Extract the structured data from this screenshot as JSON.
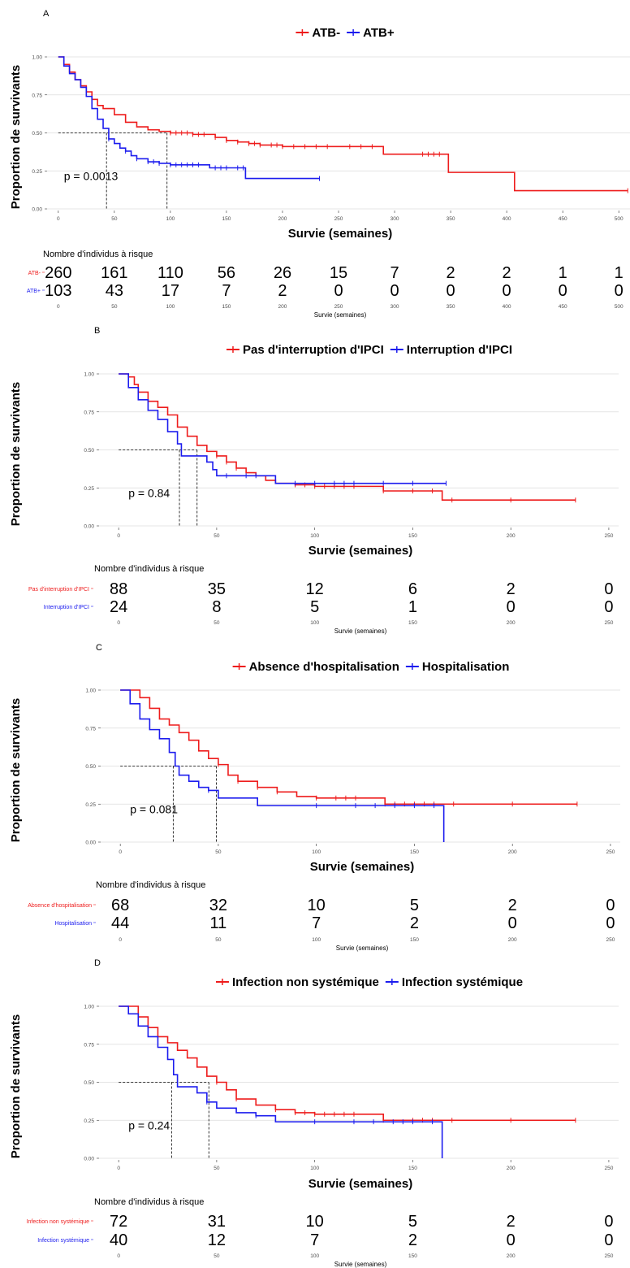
{
  "colors": {
    "red": "#ee1c1c",
    "blue": "#1c1cee",
    "grid": "#dcdcdc",
    "axis_text": "#4d4d4d"
  },
  "chart_data": [
    {
      "type": "line",
      "panel": "A",
      "xlabel": "Survie (semaines)",
      "ylabel": "Proportion de survivants",
      "xlim": [
        -10,
        510
      ],
      "ylim": [
        0,
        1
      ],
      "x_ticks": [
        0,
        50,
        100,
        150,
        200,
        250,
        300,
        350,
        400,
        450,
        500
      ],
      "y_ticks": [
        "0.00",
        "0.25",
        "0.50",
        "0.75",
        "1.00"
      ],
      "legend": [
        "ATB-",
        "ATB+"
      ],
      "legend_position": "top",
      "pvalue": "p = 0.0013",
      "medians": [
        43,
        97
      ],
      "series": [
        {
          "name": "ATB-",
          "color": "red",
          "points": [
            [
              0,
              1
            ],
            [
              5,
              0.95
            ],
            [
              10,
              0.9
            ],
            [
              15,
              0.85
            ],
            [
              20,
              0.81
            ],
            [
              25,
              0.77
            ],
            [
              30,
              0.72
            ],
            [
              35,
              0.68
            ],
            [
              40,
              0.66
            ],
            [
              50,
              0.62
            ],
            [
              60,
              0.57
            ],
            [
              70,
              0.54
            ],
            [
              80,
              0.52
            ],
            [
              90,
              0.51
            ],
            [
              100,
              0.5
            ],
            [
              120,
              0.49
            ],
            [
              140,
              0.47
            ],
            [
              150,
              0.45
            ],
            [
              160,
              0.44
            ],
            [
              170,
              0.43
            ],
            [
              180,
              0.42
            ],
            [
              200,
              0.41
            ],
            [
              290,
              0.41
            ],
            [
              290,
              0.36
            ],
            [
              348,
              0.36
            ],
            [
              348,
              0.24
            ],
            [
              407,
              0.24
            ],
            [
              407,
              0.12
            ],
            [
              508,
              0.12
            ]
          ],
          "censor": [
            100,
            105,
            110,
            115,
            120,
            125,
            130,
            140,
            150,
            160,
            170,
            175,
            180,
            190,
            195,
            200,
            210,
            220,
            230,
            240,
            260,
            270,
            280,
            325,
            330,
            335,
            340,
            508
          ]
        },
        {
          "name": "ATB+",
          "color": "blue",
          "points": [
            [
              0,
              1
            ],
            [
              5,
              0.94
            ],
            [
              10,
              0.89
            ],
            [
              15,
              0.85
            ],
            [
              20,
              0.8
            ],
            [
              25,
              0.74
            ],
            [
              30,
              0.66
            ],
            [
              35,
              0.59
            ],
            [
              40,
              0.53
            ],
            [
              45,
              0.46
            ],
            [
              50,
              0.43
            ],
            [
              55,
              0.4
            ],
            [
              60,
              0.38
            ],
            [
              65,
              0.35
            ],
            [
              70,
              0.33
            ],
            [
              80,
              0.31
            ],
            [
              90,
              0.3
            ],
            [
              100,
              0.29
            ],
            [
              135,
              0.29
            ],
            [
              135,
              0.27
            ],
            [
              167,
              0.27
            ],
            [
              167,
              0.2
            ],
            [
              233,
              0.2
            ]
          ],
          "censor": [
            45,
            60,
            70,
            80,
            85,
            90,
            100,
            105,
            110,
            115,
            120,
            125,
            140,
            145,
            150,
            160,
            165,
            233
          ]
        }
      ],
      "risk_table": {
        "title": "Nombre d'individus à risque",
        "xlabel": "Survie (semaines)",
        "rows": [
          {
            "label": "ATB-",
            "color": "red",
            "values": [
              "260",
              "161",
              "110",
              "56",
              "26",
              "15",
              "7",
              "2",
              "2",
              "1",
              "1"
            ]
          },
          {
            "label": "ATB+",
            "color": "blue",
            "values": [
              "103",
              "43",
              "17",
              "7",
              "2",
              "0",
              "0",
              "0",
              "0",
              "0",
              "0"
            ]
          }
        ]
      }
    },
    {
      "type": "line",
      "panel": "B",
      "xlabel": "Survie (semaines)",
      "ylabel": "Proportion de survivants",
      "xlim": [
        -10,
        255
      ],
      "ylim": [
        0,
        1
      ],
      "x_ticks": [
        0,
        50,
        100,
        150,
        200,
        250
      ],
      "y_ticks": [
        "0.00",
        "0.25",
        "0.50",
        "0.75",
        "1.00"
      ],
      "legend": [
        "Pas d'interruption d'IPCI",
        "Interruption d'IPCI"
      ],
      "legend_position": "top",
      "pvalue": "p = 0.84",
      "medians": [
        31,
        40
      ],
      "series": [
        {
          "name": "Pas d'interruption d'IPCI",
          "color": "red",
          "points": [
            [
              0,
              1
            ],
            [
              5,
              0.98
            ],
            [
              8,
              0.93
            ],
            [
              10,
              0.88
            ],
            [
              15,
              0.82
            ],
            [
              20,
              0.78
            ],
            [
              25,
              0.73
            ],
            [
              30,
              0.65
            ],
            [
              35,
              0.59
            ],
            [
              40,
              0.53
            ],
            [
              45,
              0.49
            ],
            [
              50,
              0.46
            ],
            [
              55,
              0.42
            ],
            [
              60,
              0.38
            ],
            [
              65,
              0.35
            ],
            [
              70,
              0.33
            ],
            [
              75,
              0.3
            ],
            [
              80,
              0.28
            ],
            [
              90,
              0.27
            ],
            [
              100,
              0.26
            ],
            [
              135,
              0.26
            ],
            [
              135,
              0.23
            ],
            [
              165,
              0.23
            ],
            [
              165,
              0.17
            ],
            [
              233,
              0.17
            ]
          ],
          "censor": [
            50,
            55,
            60,
            90,
            95,
            100,
            105,
            110,
            115,
            120,
            135,
            150,
            160,
            170,
            200,
            233
          ]
        },
        {
          "name": "Interruption d'IPCI",
          "color": "blue",
          "points": [
            [
              0,
              1
            ],
            [
              5,
              0.91
            ],
            [
              10,
              0.83
            ],
            [
              15,
              0.76
            ],
            [
              20,
              0.7
            ],
            [
              25,
              0.62
            ],
            [
              30,
              0.54
            ],
            [
              32,
              0.46
            ],
            [
              40,
              0.46
            ],
            [
              45,
              0.42
            ],
            [
              48,
              0.37
            ],
            [
              50,
              0.33
            ],
            [
              80,
              0.33
            ],
            [
              80,
              0.28
            ],
            [
              167,
              0.28
            ]
          ],
          "censor": [
            55,
            65,
            70,
            90,
            100,
            110,
            115,
            120,
            135,
            150,
            167
          ]
        }
      ],
      "risk_table": {
        "title": "Nombre d'individus à risque",
        "xlabel": "Survie (semaines)",
        "rows": [
          {
            "label": "Pas d'interruption d'IPCI",
            "color": "red",
            "values": [
              "88",
              "35",
              "12",
              "6",
              "2",
              "0"
            ]
          },
          {
            "label": "Interruption d'IPCI",
            "color": "blue",
            "values": [
              "24",
              "8",
              "5",
              "1",
              "0",
              "0"
            ]
          }
        ]
      }
    },
    {
      "type": "line",
      "panel": "C",
      "xlabel": "Survie (semaines)",
      "ylabel": "Proportion de survivants",
      "xlim": [
        -10,
        255
      ],
      "ylim": [
        0,
        1
      ],
      "x_ticks": [
        0,
        50,
        100,
        150,
        200,
        250
      ],
      "y_ticks": [
        "0.00",
        "0.25",
        "0.50",
        "0.75",
        "1.00"
      ],
      "legend": [
        "Absence d'hospitalisation",
        "Hospitalisation"
      ],
      "legend_position": "top",
      "pvalue": "p = 0.081",
      "medians": [
        27,
        49
      ],
      "series": [
        {
          "name": "Absence d'hospitalisation",
          "color": "red",
          "points": [
            [
              0,
              1
            ],
            [
              7,
              1
            ],
            [
              10,
              0.95
            ],
            [
              15,
              0.88
            ],
            [
              20,
              0.81
            ],
            [
              25,
              0.77
            ],
            [
              30,
              0.72
            ],
            [
              35,
              0.67
            ],
            [
              40,
              0.6
            ],
            [
              45,
              0.55
            ],
            [
              50,
              0.51
            ],
            [
              55,
              0.44
            ],
            [
              60,
              0.4
            ],
            [
              70,
              0.36
            ],
            [
              80,
              0.33
            ],
            [
              90,
              0.3
            ],
            [
              100,
              0.29
            ],
            [
              135,
              0.29
            ],
            [
              135,
              0.25
            ],
            [
              233,
              0.25
            ]
          ],
          "censor": [
            50,
            60,
            70,
            80,
            100,
            110,
            115,
            120,
            135,
            140,
            145,
            150,
            155,
            160,
            170,
            200,
            233
          ]
        },
        {
          "name": "Hospitalisation",
          "color": "blue",
          "points": [
            [
              0,
              1
            ],
            [
              5,
              0.91
            ],
            [
              10,
              0.81
            ],
            [
              15,
              0.74
            ],
            [
              20,
              0.68
            ],
            [
              25,
              0.59
            ],
            [
              28,
              0.5
            ],
            [
              30,
              0.44
            ],
            [
              35,
              0.4
            ],
            [
              40,
              0.36
            ],
            [
              45,
              0.34
            ],
            [
              50,
              0.29
            ],
            [
              70,
              0.29
            ],
            [
              70,
              0.24
            ],
            [
              165,
              0.24
            ],
            [
              165,
              0
            ]
          ],
          "censor": [
            45,
            100,
            120,
            130,
            140,
            150,
            160
          ]
        }
      ],
      "risk_table": {
        "title": "Nombre d'individus à risque",
        "xlabel": "Survie (semaines)",
        "rows": [
          {
            "label": "Absence d'hospitalisation",
            "color": "red",
            "values": [
              "68",
              "32",
              "10",
              "5",
              "2",
              "0"
            ]
          },
          {
            "label": "Hospitalisation",
            "color": "blue",
            "values": [
              "44",
              "11",
              "7",
              "2",
              "0",
              "0"
            ]
          }
        ]
      }
    },
    {
      "type": "line",
      "panel": "D",
      "xlabel": "Survie (semaines)",
      "ylabel": "Proportion de survivants",
      "xlim": [
        -10,
        255
      ],
      "ylim": [
        0,
        1
      ],
      "x_ticks": [
        0,
        50,
        100,
        150,
        200,
        250
      ],
      "y_ticks": [
        "0.00",
        "0.25",
        "0.50",
        "0.75",
        "1.00"
      ],
      "legend": [
        "Infection non systémique",
        "Infection systémique"
      ],
      "legend_position": "top",
      "pvalue": "p = 0.24",
      "medians": [
        27,
        46
      ],
      "series": [
        {
          "name": "Infection non systémique",
          "color": "red",
          "points": [
            [
              0,
              1
            ],
            [
              5,
              1
            ],
            [
              10,
              0.93
            ],
            [
              15,
              0.86
            ],
            [
              20,
              0.8
            ],
            [
              25,
              0.76
            ],
            [
              30,
              0.71
            ],
            [
              35,
              0.66
            ],
            [
              40,
              0.6
            ],
            [
              45,
              0.54
            ],
            [
              50,
              0.5
            ],
            [
              55,
              0.45
            ],
            [
              60,
              0.39
            ],
            [
              70,
              0.35
            ],
            [
              80,
              0.32
            ],
            [
              90,
              0.3
            ],
            [
              100,
              0.29
            ],
            [
              135,
              0.29
            ],
            [
              135,
              0.25
            ],
            [
              233,
              0.25
            ]
          ],
          "censor": [
            50,
            60,
            80,
            90,
            95,
            100,
            105,
            110,
            115,
            120,
            135,
            150,
            155,
            160,
            170,
            200,
            233
          ]
        },
        {
          "name": "Infection systémique",
          "color": "blue",
          "points": [
            [
              0,
              1
            ],
            [
              5,
              0.95
            ],
            [
              10,
              0.87
            ],
            [
              15,
              0.8
            ],
            [
              20,
              0.73
            ],
            [
              25,
              0.65
            ],
            [
              28,
              0.55
            ],
            [
              30,
              0.47
            ],
            [
              40,
              0.43
            ],
            [
              45,
              0.37
            ],
            [
              50,
              0.33
            ],
            [
              60,
              0.3
            ],
            [
              70,
              0.28
            ],
            [
              80,
              0.24
            ],
            [
              165,
              0.24
            ],
            [
              165,
              0
            ]
          ],
          "censor": [
            45,
            70,
            100,
            120,
            130,
            140,
            145,
            150,
            160
          ]
        }
      ],
      "risk_table": {
        "title": "Nombre d'individus à risque",
        "xlabel": "Survie (semaines)",
        "rows": [
          {
            "label": "Infection non systémique",
            "color": "red",
            "values": [
              "72",
              "31",
              "10",
              "5",
              "2",
              "0"
            ]
          },
          {
            "label": "Infection systémique",
            "color": "blue",
            "values": [
              "40",
              "12",
              "7",
              "2",
              "0",
              "0"
            ]
          }
        ]
      }
    }
  ]
}
